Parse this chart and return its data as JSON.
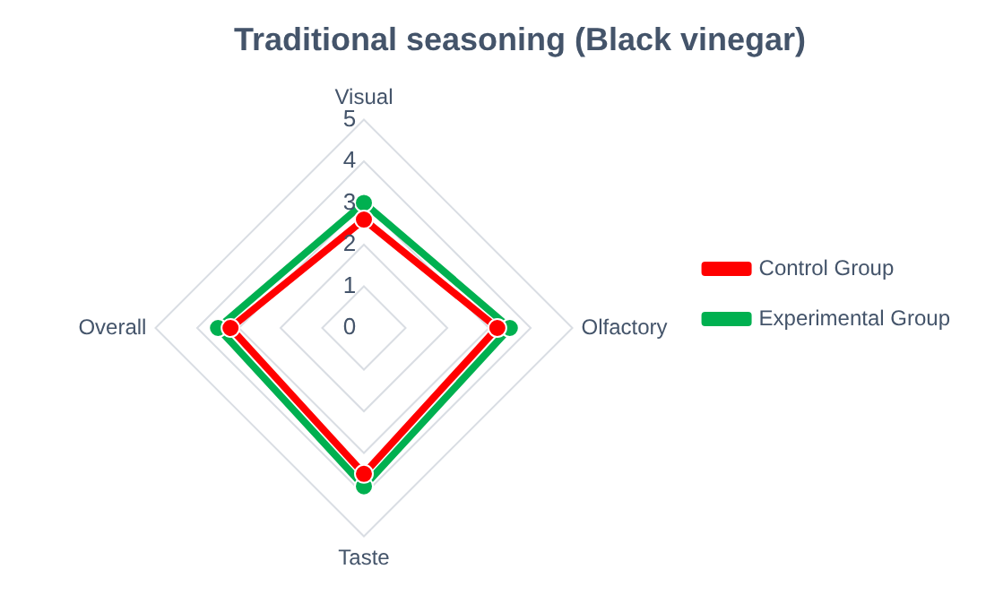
{
  "chart_data": {
    "type": "radar",
    "title": "Traditional seasoning (Black vinegar)",
    "categories": [
      "Visual",
      "Olfactory",
      "Taste",
      "Overall"
    ],
    "series": [
      {
        "name": "Control Group",
        "color": "#ff0000",
        "values": [
          2.6,
          3.2,
          3.5,
          3.2
        ]
      },
      {
        "name": "Experimental Group",
        "color": "#00b050",
        "values": [
          3.0,
          3.5,
          3.8,
          3.5
        ]
      }
    ],
    "ylim": [
      0,
      5
    ],
    "yticks": [
      0,
      1,
      2,
      3,
      4,
      5
    ],
    "grid": true,
    "legend": "right",
    "marker": "circle"
  }
}
